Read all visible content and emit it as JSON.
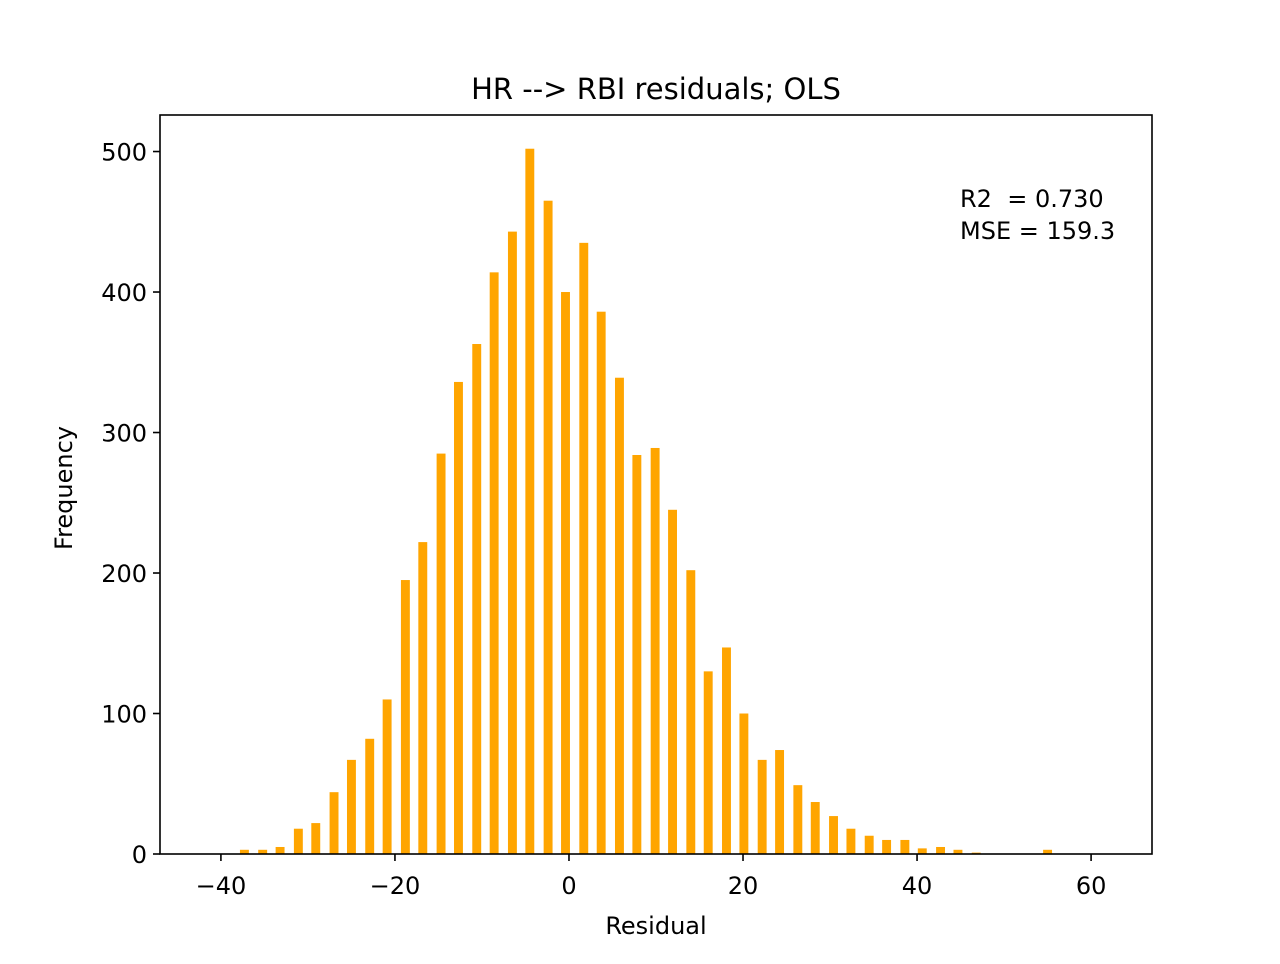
{
  "chart_data": {
    "type": "bar",
    "title": "HR --> RBI residuals; OLS",
    "xlabel": "Residual",
    "ylabel": "Frequency",
    "xlim": [
      -47,
      67
    ],
    "ylim": [
      0,
      526
    ],
    "xticks": [
      -40,
      -20,
      0,
      20,
      40,
      60
    ],
    "xtick_labels": [
      "−40",
      "−20",
      "0",
      "20",
      "40",
      "60"
    ],
    "yticks": [
      0,
      100,
      200,
      300,
      400,
      500
    ],
    "ytick_labels": [
      "0",
      "100",
      "200",
      "300",
      "400",
      "500"
    ],
    "grid": false,
    "bar_color": "#ffa500",
    "bin_width": 2.05,
    "x": [
      -37.3,
      -35.2,
      -33.2,
      -31.1,
      -29.1,
      -27.0,
      -25.0,
      -22.9,
      -20.9,
      -18.8,
      -16.8,
      -14.7,
      -12.7,
      -10.6,
      -8.6,
      -6.5,
      -4.5,
      -2.4,
      -0.4,
      1.7,
      3.7,
      5.8,
      7.8,
      9.9,
      11.9,
      14.0,
      16.0,
      18.1,
      20.1,
      22.2,
      24.2,
      26.3,
      28.3,
      30.4,
      32.4,
      34.5,
      36.5,
      38.6,
      40.6,
      42.7,
      44.7,
      46.8,
      48.8,
      50.9,
      52.9,
      55.0,
      57.0
    ],
    "values": [
      3,
      3,
      5,
      18,
      22,
      44,
      67,
      82,
      110,
      195,
      222,
      285,
      336,
      363,
      414,
      443,
      502,
      465,
      400,
      435,
      386,
      339,
      284,
      289,
      245,
      202,
      130,
      147,
      100,
      67,
      74,
      49,
      37,
      27,
      18,
      13,
      10,
      10,
      4,
      5,
      3,
      1,
      0,
      0,
      0,
      3,
      0
    ],
    "annotation": {
      "lines": [
        "R2  = 0.730",
        "MSE = 159.3"
      ],
      "position": "top-right"
    }
  }
}
